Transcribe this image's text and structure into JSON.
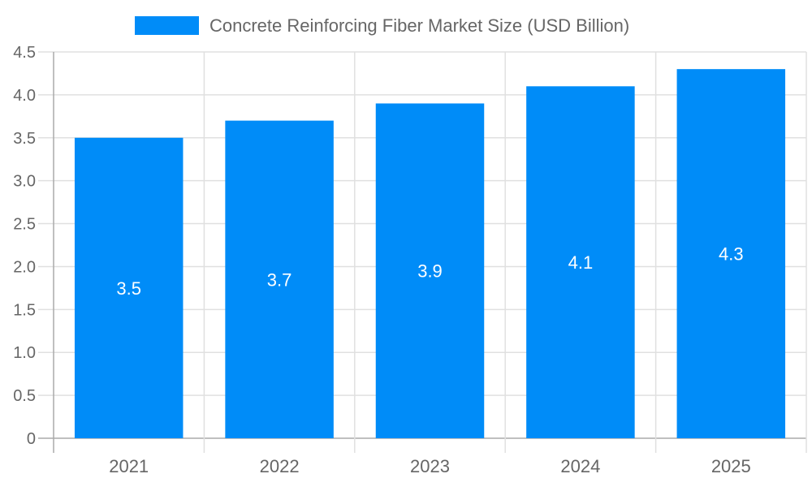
{
  "chart_data": {
    "type": "bar",
    "categories": [
      "2021",
      "2022",
      "2023",
      "2024",
      "2025"
    ],
    "series": [
      {
        "name": "Concrete Reinforcing Fiber Market Size (USD Billion)",
        "values": [
          3.5,
          3.7,
          3.9,
          4.1,
          4.3
        ],
        "color": "#008cf8"
      }
    ],
    "data_labels": [
      "3.5",
      "3.7",
      "3.9",
      "4.1",
      "4.3"
    ],
    "yticks": [
      "0",
      "0.5",
      "1.0",
      "1.5",
      "2.0",
      "2.5",
      "3.0",
      "3.5",
      "4.0",
      "4.5"
    ],
    "ylim": [
      0,
      4.5
    ],
    "xlabel": "",
    "ylabel": "",
    "grid": true,
    "legend_position": "top"
  }
}
